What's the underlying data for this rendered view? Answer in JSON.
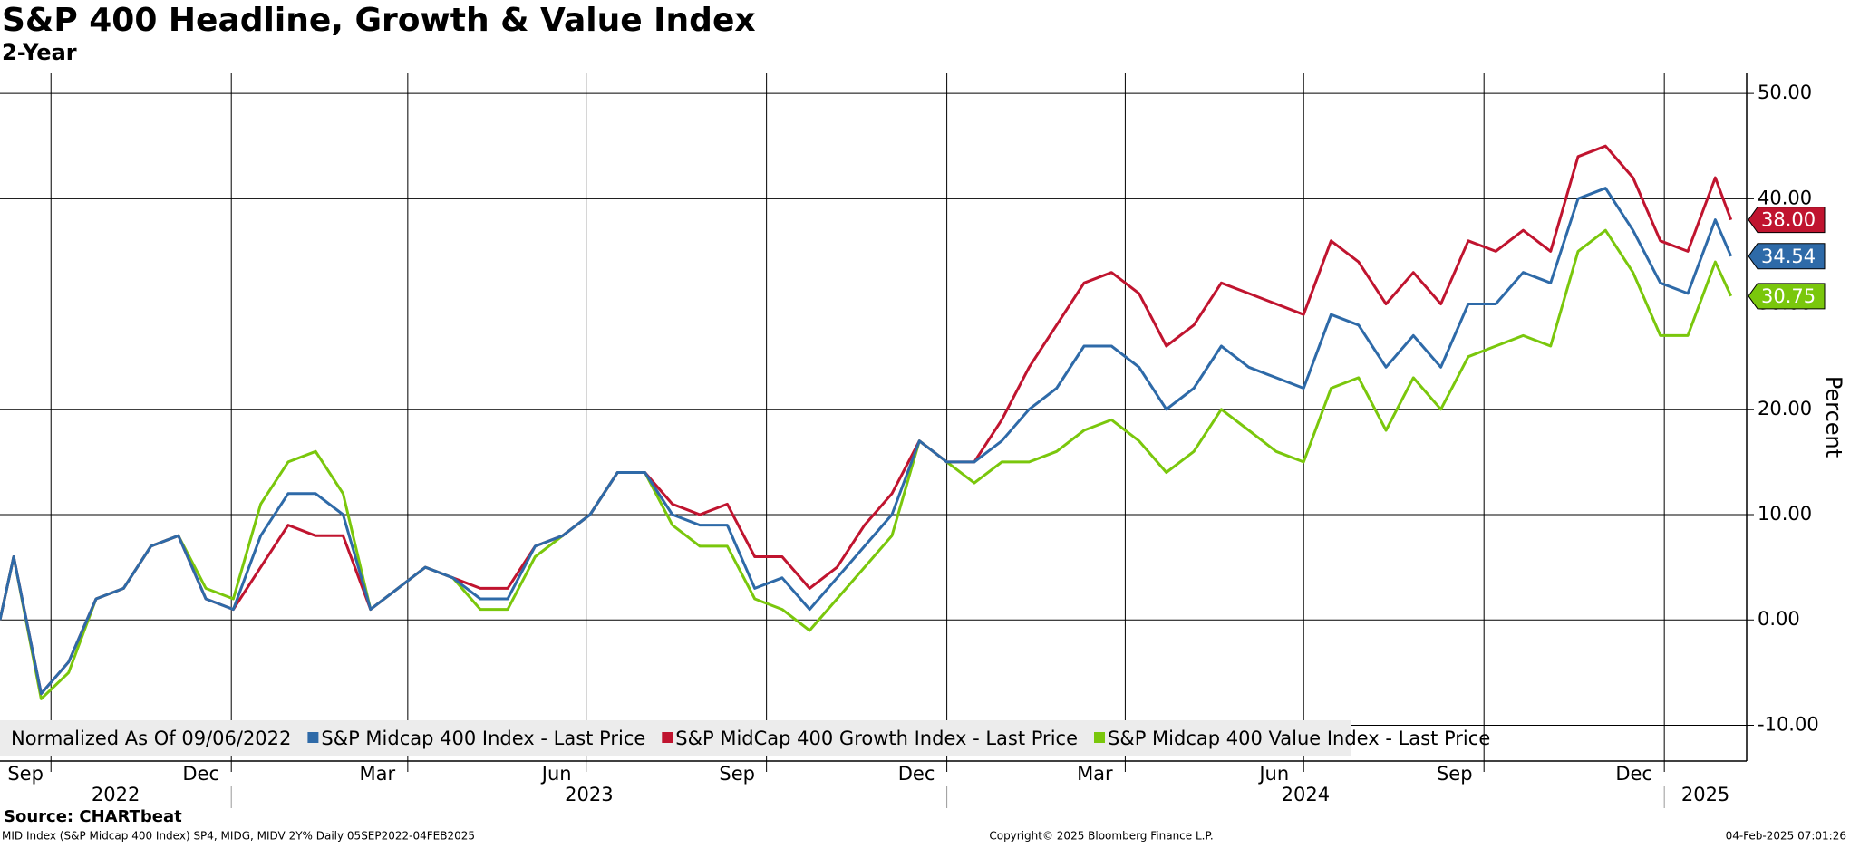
{
  "chart_data": {
    "type": "line",
    "title": "S&P 400 Headline, Growth & Value Index",
    "subtitle": "2-Year",
    "y_axis_label": "Percent",
    "legend_note": "Normalized As Of 09/06/2022",
    "source": "Source: CHARTbeat",
    "footer_left": "MID Index (S&P Midcap 400 Index) SP4, MIDG, MIDV 2Y%  Daily 05SEP2022-04FEB2025",
    "footer_center": "Copyright© 2025 Bloomberg Finance L.P.",
    "footer_right": "04-Feb-2025 07:01:26",
    "grid": true,
    "xlim": [
      "2022-09-05",
      "2025-02-12"
    ],
    "ylim": [
      -13.4,
      51.9
    ],
    "yticks": [
      {
        "value": -10,
        "label": "-10.00"
      },
      {
        "value": 0,
        "label": "0.00"
      },
      {
        "value": 10,
        "label": "10.00"
      },
      {
        "value": 20,
        "label": "20.00"
      },
      {
        "value": 30,
        "label": "30.00"
      },
      {
        "value": 40,
        "label": "40.00"
      },
      {
        "value": 50,
        "label": "50.00"
      }
    ],
    "xticks": [
      {
        "value": "2022-09",
        "label": "Sep"
      },
      {
        "value": "2022-12",
        "label": "Dec"
      },
      {
        "value": "2023-03",
        "label": "Mar"
      },
      {
        "value": "2023-06",
        "label": "Jun"
      },
      {
        "value": "2023-09",
        "label": "Sep"
      },
      {
        "value": "2023-12",
        "label": "Dec"
      },
      {
        "value": "2024-03",
        "label": "Mar"
      },
      {
        "value": "2024-06",
        "label": "Jun"
      },
      {
        "value": "2024-09",
        "label": "Sep"
      },
      {
        "value": "2024-12",
        "label": "Dec"
      }
    ],
    "years": [
      2022,
      2023,
      2024,
      2025
    ],
    "x": [
      "2022-09-05",
      "2022-09-12",
      "2022-09-26",
      "2022-10-10",
      "2022-10-24",
      "2022-11-07",
      "2022-11-21",
      "2022-12-05",
      "2022-12-19",
      "2023-01-02",
      "2023-01-16",
      "2023-01-30",
      "2023-02-13",
      "2023-02-27",
      "2023-03-13",
      "2023-03-27",
      "2023-04-10",
      "2023-04-24",
      "2023-05-08",
      "2023-05-22",
      "2023-06-05",
      "2023-06-19",
      "2023-07-03",
      "2023-07-17",
      "2023-07-31",
      "2023-08-14",
      "2023-08-28",
      "2023-09-11",
      "2023-09-25",
      "2023-10-09",
      "2023-10-23",
      "2023-11-06",
      "2023-11-20",
      "2023-12-04",
      "2023-12-18",
      "2024-01-01",
      "2024-01-15",
      "2024-01-29",
      "2024-02-12",
      "2024-02-26",
      "2024-03-11",
      "2024-03-25",
      "2024-04-08",
      "2024-04-22",
      "2024-05-06",
      "2024-05-20",
      "2024-06-03",
      "2024-06-17",
      "2024-07-01",
      "2024-07-15",
      "2024-07-29",
      "2024-08-12",
      "2024-08-26",
      "2024-09-09",
      "2024-09-23",
      "2024-10-07",
      "2024-10-21",
      "2024-11-04",
      "2024-11-18",
      "2024-12-02",
      "2024-12-16",
      "2024-12-30",
      "2025-01-13",
      "2025-01-27",
      "2025-02-04"
    ],
    "series": [
      {
        "name": "S&P Midcap 400 Index - Last Price",
        "color": "#2e6aa8",
        "last_label": "34.54",
        "values": [
          0,
          6,
          -7,
          -4,
          2,
          3,
          7,
          8,
          2,
          1,
          8,
          12,
          12,
          10,
          1,
          3,
          5,
          4,
          2,
          2,
          7,
          8,
          10,
          14,
          14,
          10,
          9,
          9,
          3,
          4,
          1,
          4,
          7,
          10,
          17,
          15,
          15,
          17,
          20,
          22,
          26,
          26,
          24,
          20,
          22,
          26,
          24,
          23,
          22,
          29,
          28,
          24,
          27,
          24,
          30,
          30,
          33,
          32,
          40,
          41,
          37,
          32,
          31,
          38,
          34.54
        ]
      },
      {
        "name": "S&P MidCap 400 Growth Index - Last Price",
        "color": "#c0142f",
        "last_label": "38.00",
        "values": [
          0,
          6,
          -7,
          -4,
          2,
          3,
          7,
          8,
          2,
          1,
          5,
          9,
          8,
          8,
          1,
          3,
          5,
          4,
          3,
          3,
          7,
          8,
          10,
          14,
          14,
          11,
          10,
          11,
          6,
          6,
          3,
          5,
          9,
          12,
          17,
          15,
          15,
          19,
          24,
          28,
          32,
          33,
          31,
          26,
          28,
          32,
          31,
          30,
          29,
          36,
          34,
          30,
          33,
          30,
          36,
          35,
          37,
          35,
          44,
          45,
          42,
          36,
          35,
          42,
          38
        ]
      },
      {
        "name": "S&P Midcap 400 Value Index - Last Price",
        "color": "#7ac70c",
        "last_label": "30.75",
        "values": [
          0,
          6,
          -7.5,
          -5,
          2,
          3,
          7,
          8,
          3,
          2,
          11,
          15,
          16,
          12,
          1,
          3,
          5,
          4,
          1,
          1,
          6,
          8,
          10,
          14,
          14,
          9,
          7,
          7,
          2,
          1,
          -1,
          2,
          5,
          8,
          17,
          15,
          13,
          15,
          15,
          16,
          18,
          19,
          17,
          14,
          16,
          20,
          18,
          16,
          15,
          22,
          23,
          18,
          23,
          20,
          25,
          26,
          27,
          26,
          35,
          37,
          33,
          27,
          27,
          34,
          30.75
        ]
      }
    ]
  }
}
